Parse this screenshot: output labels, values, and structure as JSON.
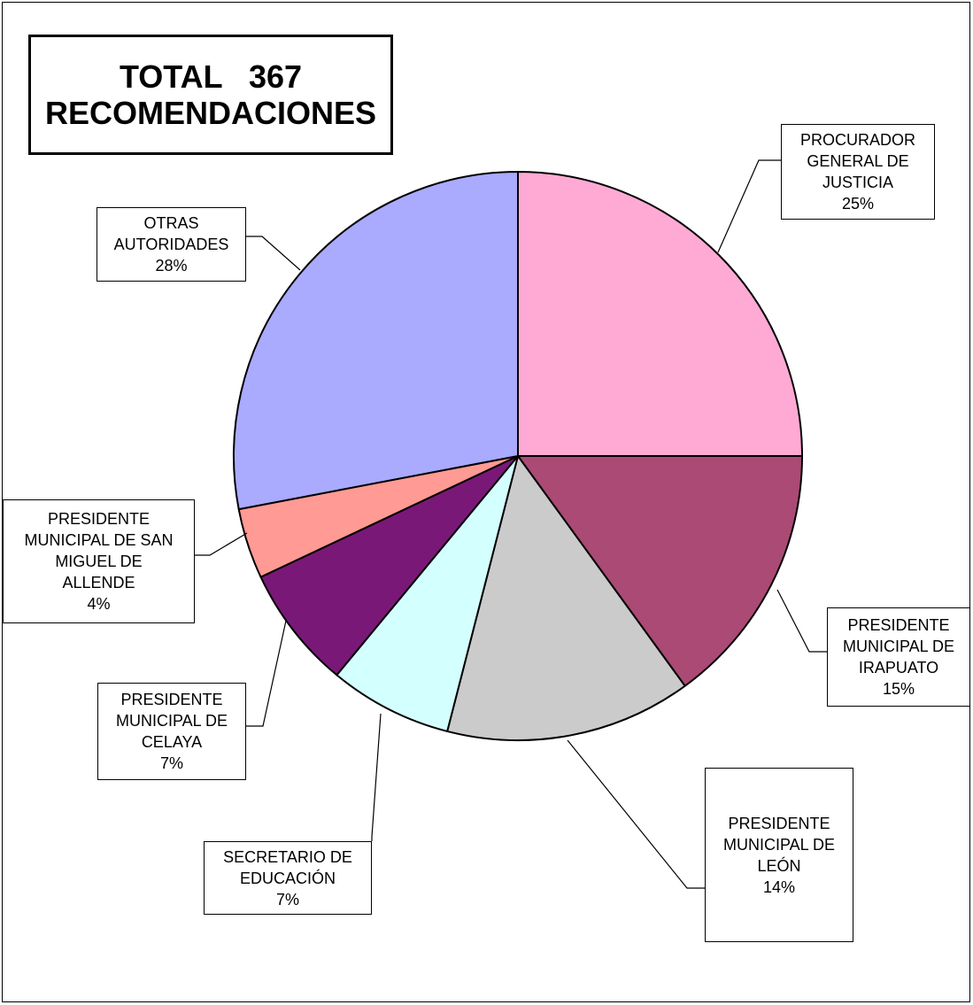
{
  "title": {
    "line1": "TOTAL   367",
    "line2": "RECOMENDACIONES"
  },
  "chart_data": {
    "type": "pie",
    "total": 367,
    "slices": [
      {
        "label": [
          "PROCURADOR",
          "GENERAL DE",
          "JUSTICIA"
        ],
        "percent_label": "25%",
        "value": 25,
        "color": "#ffaad4"
      },
      {
        "label": [
          "PRESIDENTE",
          "MUNICIPAL DE",
          "IRAPUATO"
        ],
        "percent_label": "15%",
        "value": 15,
        "color": "#aa4a75"
      },
      {
        "label": [
          "PRESIDENTE",
          "MUNICIPAL DE",
          "LEÓN"
        ],
        "percent_label": "14%",
        "value": 14,
        "color": "#cbcbcb"
      },
      {
        "label": [
          "SECRETARIO DE",
          "EDUCACIÓN"
        ],
        "percent_label": "7%",
        "value": 7,
        "color": "#d4ffff"
      },
      {
        "label": [
          "PRESIDENTE",
          "MUNICIPAL DE",
          "CELAYA"
        ],
        "percent_label": "7%",
        "value": 7,
        "color": "#7a1878"
      },
      {
        "label": [
          "PRESIDENTE",
          "MUNICIPAL DE SAN",
          "MIGUEL DE",
          "ALLENDE"
        ],
        "percent_label": "4%",
        "value": 4,
        "color": "#ff9a94"
      },
      {
        "label": [
          "OTRAS",
          "AUTORIDADES"
        ],
        "percent_label": "28%",
        "value": 28,
        "color": "#aaaaff"
      }
    ]
  }
}
